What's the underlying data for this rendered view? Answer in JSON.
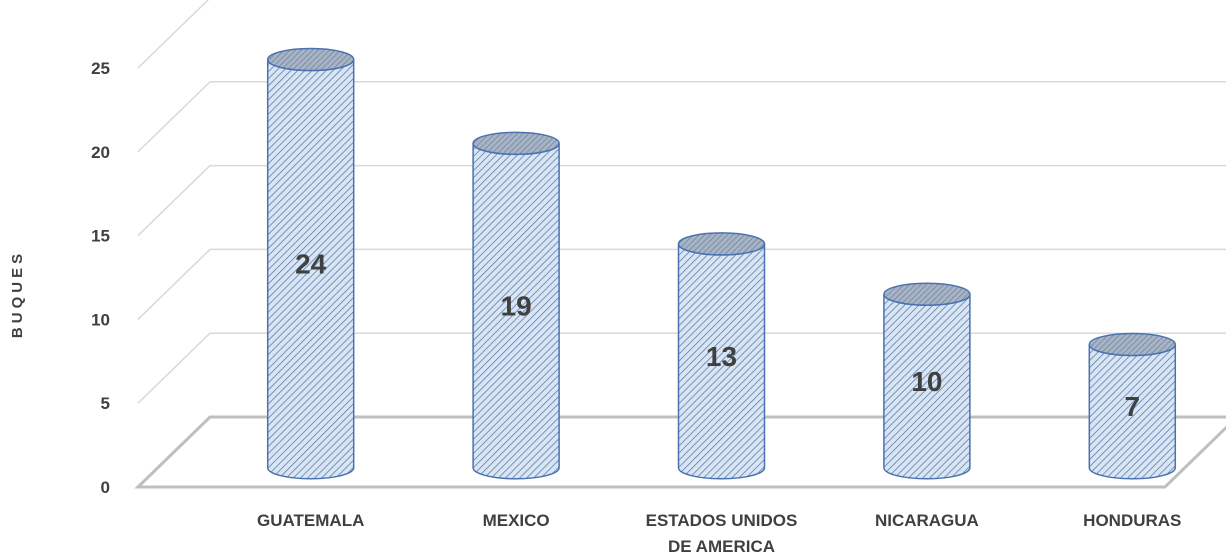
{
  "chart_data": {
    "type": "bar",
    "style": "3d-cylinder",
    "categories": [
      "GUATEMALA",
      "MEXICO",
      "ESTADOS UNIDOS DE AMERICA",
      "NICARAGUA",
      "HONDURAS"
    ],
    "category_lines": [
      [
        "GUATEMALA"
      ],
      [
        "MEXICO"
      ],
      [
        "ESTADOS UNIDOS",
        "DE AMERICA"
      ],
      [
        "NICARAGUA"
      ],
      [
        "HONDURAS"
      ]
    ],
    "values": [
      24,
      19,
      13,
      10,
      7
    ],
    "value_labels": [
      "24",
      "19",
      "13",
      "10",
      "7"
    ],
    "title": "",
    "xlabel": "",
    "ylabel": "BUQUES",
    "ylim": [
      0,
      25
    ],
    "yticks": [
      "0",
      "5",
      "10",
      "15",
      "20",
      "25"
    ],
    "grid": true,
    "legend": "none",
    "colors": {
      "bar_fill": "#dae5f3",
      "bar_hatch": "#5b7fb0",
      "bar_outline": "#4a72b0",
      "bar_top": "#8a9bb3",
      "grid": "#d9d9d9",
      "floor": "#bfbfbf",
      "text": "#404040"
    }
  }
}
